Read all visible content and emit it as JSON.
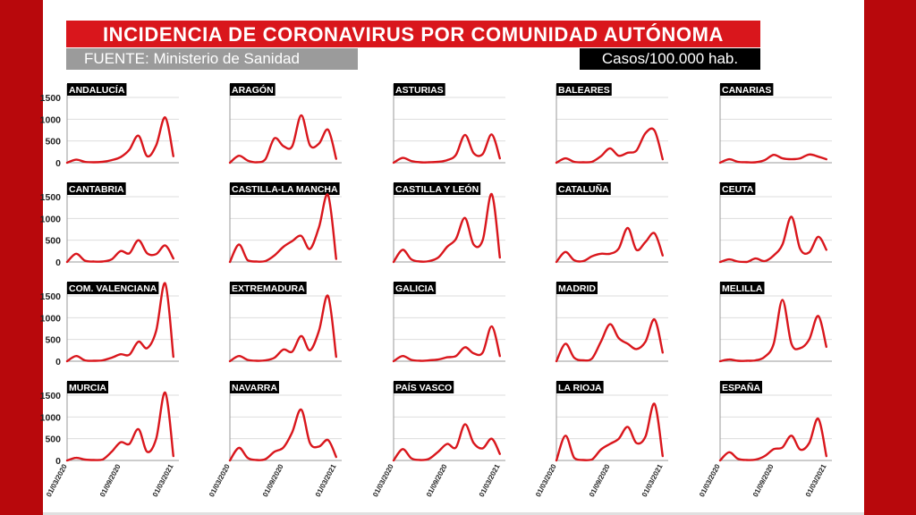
{
  "header": {
    "title": "INCIDENCIA DE CORONAVIRUS POR COMUNIDAD AUTÓNOMA",
    "source": "FUENTE: Ministerio de Sanidad",
    "unit": "Casos/100.000 hab."
  },
  "colors": {
    "line": "#d9161c",
    "accent": "#b8080c",
    "label_bg": "#000000",
    "source_bg": "#9b9b9b"
  },
  "chart_data": {
    "type": "line",
    "layout": "small-multiples",
    "title": "INCIDENCIA DE CORONAVIRUS POR COMUNIDAD AUTÓNOMA",
    "ylabel": "Casos/100.000 hab.",
    "y_ticks": [
      "1500",
      "1000",
      "500",
      "0"
    ],
    "x_ticks": [
      "01/03/2020",
      "01/09/2020",
      "01/03/2021"
    ],
    "ylim": [
      0,
      1500
    ],
    "xlim": [
      "2020-03-01",
      "2021-03-20"
    ],
    "grid": true,
    "series": [
      {
        "name": "ANDALUCÍA",
        "x": [
          "2020-03-01",
          "2020-04-01",
          "2020-05-01",
          "2020-06-01",
          "2020-07-01",
          "2020-08-01",
          "2020-09-01",
          "2020-10-01",
          "2020-11-01",
          "2020-12-01",
          "2021-01-01",
          "2021-02-01",
          "2021-03-01"
        ],
        "values": [
          0,
          70,
          20,
          10,
          20,
          60,
          130,
          300,
          620,
          150,
          400,
          1040,
          150
        ]
      },
      {
        "name": "ARAGÓN",
        "x": [
          "2020-03-01",
          "2020-04-01",
          "2020-05-01",
          "2020-06-01",
          "2020-07-01",
          "2020-08-01",
          "2020-09-01",
          "2020-10-01",
          "2020-11-01",
          "2020-12-01",
          "2021-01-01",
          "2021-02-01",
          "2021-03-01"
        ],
        "values": [
          0,
          160,
          50,
          10,
          80,
          560,
          380,
          380,
          1090,
          400,
          440,
          760,
          90
        ]
      },
      {
        "name": "ASTURIAS",
        "x": [
          "2020-03-01",
          "2020-04-01",
          "2020-05-01",
          "2020-06-01",
          "2020-07-01",
          "2020-08-01",
          "2020-09-01",
          "2020-10-01",
          "2020-11-01",
          "2020-12-01",
          "2021-01-01",
          "2021-02-01",
          "2021-03-01"
        ],
        "values": [
          0,
          110,
          40,
          10,
          10,
          20,
          60,
          180,
          640,
          220,
          200,
          650,
          100
        ]
      },
      {
        "name": "BALEARES",
        "x": [
          "2020-03-01",
          "2020-04-01",
          "2020-05-01",
          "2020-06-01",
          "2020-07-01",
          "2020-08-01",
          "2020-09-01",
          "2020-10-01",
          "2020-11-01",
          "2020-12-01",
          "2021-01-01",
          "2021-02-01",
          "2021-03-01"
        ],
        "values": [
          0,
          100,
          20,
          10,
          20,
          150,
          330,
          160,
          230,
          280,
          680,
          740,
          80
        ]
      },
      {
        "name": "CANARIAS",
        "x": [
          "2020-03-01",
          "2020-04-01",
          "2020-05-01",
          "2020-06-01",
          "2020-07-01",
          "2020-08-01",
          "2020-09-01",
          "2020-10-01",
          "2020-11-01",
          "2020-12-01",
          "2021-01-01",
          "2021-02-01",
          "2021-03-01"
        ],
        "values": [
          0,
          80,
          20,
          10,
          10,
          60,
          180,
          100,
          80,
          100,
          190,
          140,
          80
        ]
      },
      {
        "name": "CANTABRIA",
        "x": [
          "2020-03-01",
          "2020-04-01",
          "2020-05-01",
          "2020-06-01",
          "2020-07-01",
          "2020-08-01",
          "2020-09-01",
          "2020-10-01",
          "2020-11-01",
          "2020-12-01",
          "2021-01-01",
          "2021-02-01",
          "2021-03-01"
        ],
        "values": [
          0,
          190,
          30,
          10,
          10,
          60,
          250,
          200,
          500,
          200,
          180,
          380,
          80
        ]
      },
      {
        "name": "CASTILLA-LA MANCHA",
        "x": [
          "2020-03-01",
          "2020-04-01",
          "2020-05-01",
          "2020-06-01",
          "2020-07-01",
          "2020-08-01",
          "2020-09-01",
          "2020-10-01",
          "2020-11-01",
          "2020-12-01",
          "2021-01-01",
          "2021-02-01",
          "2021-03-01"
        ],
        "values": [
          0,
          400,
          40,
          10,
          20,
          150,
          350,
          480,
          600,
          300,
          800,
          1540,
          70
        ]
      },
      {
        "name": "CASTILLA Y LEÓN",
        "x": [
          "2020-03-01",
          "2020-04-01",
          "2020-05-01",
          "2020-06-01",
          "2020-07-01",
          "2020-08-01",
          "2020-09-01",
          "2020-10-01",
          "2020-11-01",
          "2020-12-01",
          "2021-01-01",
          "2021-02-01",
          "2021-03-01"
        ],
        "values": [
          0,
          280,
          60,
          10,
          20,
          100,
          350,
          530,
          1010,
          400,
          500,
          1560,
          100
        ]
      },
      {
        "name": "CATALUÑA",
        "x": [
          "2020-03-01",
          "2020-04-01",
          "2020-05-01",
          "2020-06-01",
          "2020-07-01",
          "2020-08-01",
          "2020-09-01",
          "2020-10-01",
          "2020-11-01",
          "2020-12-01",
          "2021-01-01",
          "2021-02-01",
          "2021-03-01"
        ],
        "values": [
          0,
          230,
          40,
          20,
          130,
          190,
          190,
          310,
          780,
          280,
          460,
          660,
          150
        ]
      },
      {
        "name": "CEUTA",
        "x": [
          "2020-03-01",
          "2020-04-01",
          "2020-05-01",
          "2020-06-01",
          "2020-07-01",
          "2020-08-01",
          "2020-09-01",
          "2020-10-01",
          "2020-11-01",
          "2020-12-01",
          "2021-01-01",
          "2021-02-01",
          "2021-03-01"
        ],
        "values": [
          0,
          60,
          10,
          0,
          80,
          20,
          150,
          400,
          1040,
          300,
          220,
          580,
          280
        ]
      },
      {
        "name": "COM. VALENCIANA",
        "x": [
          "2020-03-01",
          "2020-04-01",
          "2020-05-01",
          "2020-06-01",
          "2020-07-01",
          "2020-08-01",
          "2020-09-01",
          "2020-10-01",
          "2020-11-01",
          "2020-12-01",
          "2021-01-01",
          "2021-02-01",
          "2021-03-01"
        ],
        "values": [
          0,
          120,
          20,
          10,
          20,
          80,
          160,
          150,
          450,
          300,
          700,
          1900,
          100
        ]
      },
      {
        "name": "EXTREMADURA",
        "x": [
          "2020-03-01",
          "2020-04-01",
          "2020-05-01",
          "2020-06-01",
          "2020-07-01",
          "2020-08-01",
          "2020-09-01",
          "2020-10-01",
          "2020-11-01",
          "2020-12-01",
          "2021-01-01",
          "2021-02-01",
          "2021-03-01"
        ],
        "values": [
          0,
          120,
          30,
          10,
          20,
          80,
          270,
          220,
          580,
          250,
          700,
          1500,
          100
        ]
      },
      {
        "name": "GALICIA",
        "x": [
          "2020-03-01",
          "2020-04-01",
          "2020-05-01",
          "2020-06-01",
          "2020-07-01",
          "2020-08-01",
          "2020-09-01",
          "2020-10-01",
          "2020-11-01",
          "2020-12-01",
          "2021-01-01",
          "2021-02-01",
          "2021-03-01"
        ],
        "values": [
          0,
          120,
          30,
          10,
          20,
          40,
          90,
          120,
          320,
          180,
          200,
          800,
          120
        ]
      },
      {
        "name": "MADRID",
        "x": [
          "2020-03-01",
          "2020-04-01",
          "2020-05-01",
          "2020-06-01",
          "2020-07-01",
          "2020-08-01",
          "2020-09-01",
          "2020-10-01",
          "2020-11-01",
          "2020-12-01",
          "2021-01-01",
          "2021-02-01",
          "2021-03-01"
        ],
        "values": [
          0,
          400,
          80,
          20,
          60,
          450,
          850,
          530,
          400,
          280,
          450,
          960,
          200
        ]
      },
      {
        "name": "MELILLA",
        "x": [
          "2020-03-01",
          "2020-04-01",
          "2020-05-01",
          "2020-06-01",
          "2020-07-01",
          "2020-08-01",
          "2020-09-01",
          "2020-10-01",
          "2020-11-01",
          "2020-12-01",
          "2021-01-01",
          "2021-02-01",
          "2021-03-01"
        ],
        "values": [
          0,
          40,
          10,
          10,
          20,
          100,
          400,
          1410,
          400,
          300,
          500,
          1040,
          330
        ]
      },
      {
        "name": "MURCIA",
        "x": [
          "2020-03-01",
          "2020-04-01",
          "2020-05-01",
          "2020-06-01",
          "2020-07-01",
          "2020-08-01",
          "2020-09-01",
          "2020-10-01",
          "2020-11-01",
          "2020-12-01",
          "2021-01-01",
          "2021-02-01",
          "2021-03-01"
        ],
        "values": [
          0,
          60,
          20,
          10,
          20,
          200,
          420,
          380,
          720,
          200,
          500,
          1560,
          100
        ]
      },
      {
        "name": "NAVARRA",
        "x": [
          "2020-03-01",
          "2020-04-01",
          "2020-05-01",
          "2020-06-01",
          "2020-07-01",
          "2020-08-01",
          "2020-09-01",
          "2020-10-01",
          "2020-11-01",
          "2020-12-01",
          "2021-01-01",
          "2021-02-01",
          "2021-03-01"
        ],
        "values": [
          0,
          290,
          60,
          10,
          30,
          200,
          300,
          650,
          1170,
          400,
          320,
          470,
          80
        ]
      },
      {
        "name": "PAÍS VASCO",
        "x": [
          "2020-03-01",
          "2020-04-01",
          "2020-05-01",
          "2020-06-01",
          "2020-07-01",
          "2020-08-01",
          "2020-09-01",
          "2020-10-01",
          "2020-11-01",
          "2020-12-01",
          "2021-01-01",
          "2021-02-01",
          "2021-03-01"
        ],
        "values": [
          0,
          260,
          50,
          10,
          40,
          200,
          380,
          300,
          830,
          400,
          280,
          500,
          150
        ]
      },
      {
        "name": "LA RIOJA",
        "x": [
          "2020-03-01",
          "2020-04-01",
          "2020-05-01",
          "2020-06-01",
          "2020-07-01",
          "2020-08-01",
          "2020-09-01",
          "2020-10-01",
          "2020-11-01",
          "2020-12-01",
          "2021-01-01",
          "2021-02-01",
          "2021-03-01"
        ],
        "values": [
          0,
          570,
          60,
          10,
          20,
          250,
          380,
          500,
          770,
          400,
          550,
          1300,
          100
        ]
      },
      {
        "name": "ESPAÑA",
        "x": [
          "2020-03-01",
          "2020-04-01",
          "2020-05-01",
          "2020-06-01",
          "2020-07-01",
          "2020-08-01",
          "2020-09-01",
          "2020-10-01",
          "2020-11-01",
          "2020-12-01",
          "2021-01-01",
          "2021-02-01",
          "2021-03-01"
        ],
        "values": [
          0,
          190,
          40,
          10,
          20,
          100,
          260,
          300,
          570,
          250,
          400,
          960,
          100
        ]
      }
    ]
  }
}
